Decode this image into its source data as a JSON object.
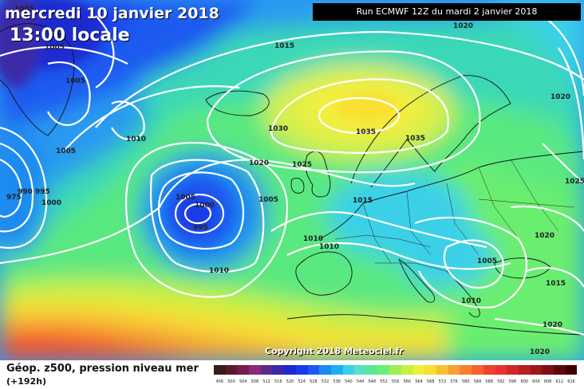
{
  "header": {
    "date_line": "mercredi 10 janvier 2018",
    "time_line": "13:00 locale",
    "run_info": "Run ECMWF 12Z du mardi 2 janvier 2018"
  },
  "copyright": "Copyright 2018 Meteociel.fr",
  "footer": {
    "title": "Géop. z500, pression niveau mer",
    "subtitle": "(+192h)"
  },
  "legend": {
    "values": [
      "456",
      "500",
      "504",
      "508",
      "512",
      "516",
      "520",
      "524",
      "528",
      "532",
      "536",
      "540",
      "544",
      "548",
      "552",
      "556",
      "560",
      "564",
      "568",
      "572",
      "576",
      "580",
      "584",
      "588",
      "592",
      "596",
      "600",
      "604",
      "608",
      "612",
      "616"
    ],
    "colors": [
      "#3a1a1a",
      "#5a1a2a",
      "#7a1a4a",
      "#8a2a7a",
      "#5a2a8a",
      "#3a2aa8",
      "#1a2ad0",
      "#1a3ae8",
      "#1a5af0",
      "#1a8af0",
      "#1ab0f0",
      "#3ad0e8",
      "#5ae0c8",
      "#5ae890",
      "#6af070",
      "#9af050",
      "#c8f040",
      "#eef040",
      "#f8e030",
      "#f8c030",
      "#f8a030",
      "#f88030",
      "#f86030",
      "#f04030",
      "#e83030",
      "#d02828",
      "#b82020",
      "#a01818",
      "#801010",
      "#600808",
      "#400000"
    ]
  },
  "pressure_labels": [
    {
      "text": "1005"
    },
    {
      "text": "1005"
    },
    {
      "text": "1005"
    },
    {
      "text": "1005"
    },
    {
      "text": "1015"
    },
    {
      "text": "1010"
    },
    {
      "text": "1005"
    },
    {
      "text": "975"
    },
    {
      "text": "990"
    },
    {
      "text": "995"
    },
    {
      "text": "1000"
    },
    {
      "text": "1020"
    },
    {
      "text": "1030"
    },
    {
      "text": "1035"
    },
    {
      "text": "1035"
    },
    {
      "text": "1025"
    },
    {
      "text": "1005"
    },
    {
      "text": "1000"
    },
    {
      "text": "995"
    },
    {
      "text": "1005"
    },
    {
      "text": "1015"
    },
    {
      "text": "1010"
    },
    {
      "text": "1010"
    },
    {
      "text": "1010"
    },
    {
      "text": "1005"
    },
    {
      "text": "1010"
    },
    {
      "text": "1020"
    },
    {
      "text": "1020"
    },
    {
      "text": "1025"
    },
    {
      "text": "1020"
    },
    {
      "text": "1015"
    },
    {
      "text": "1020"
    },
    {
      "text": "1020"
    }
  ],
  "colors": {
    "contour": "#ffffff",
    "coast": "#111111"
  }
}
